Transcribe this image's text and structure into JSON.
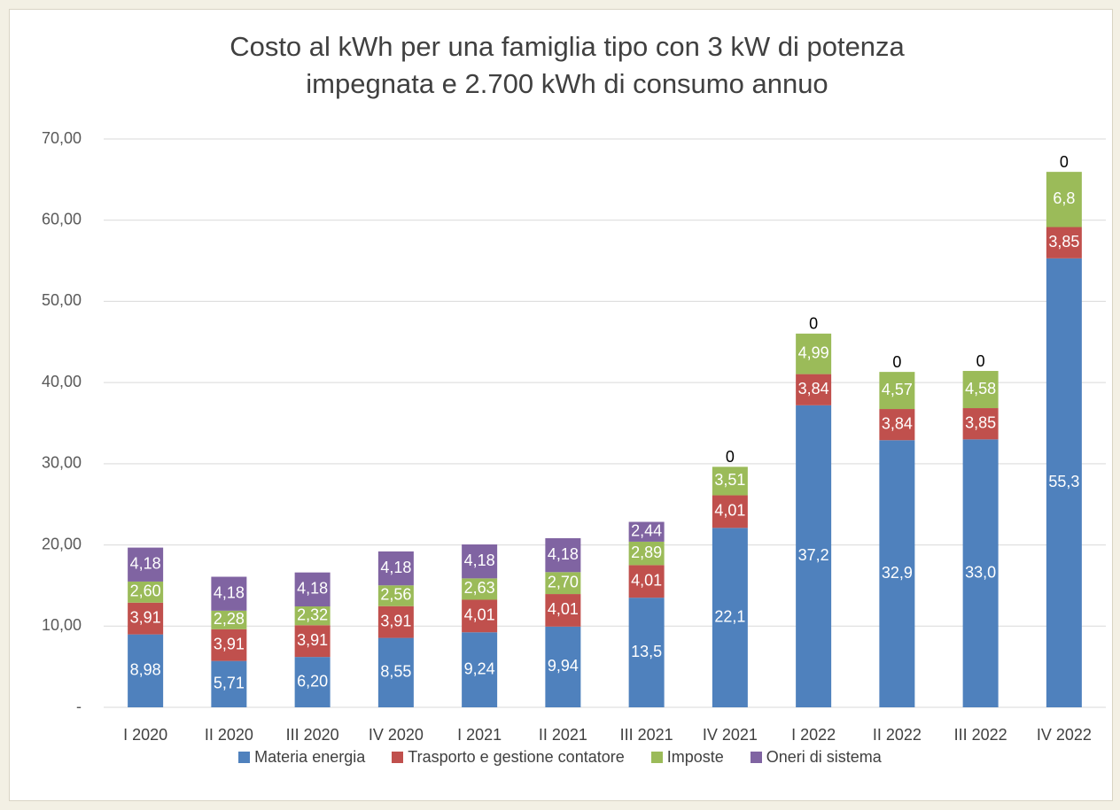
{
  "chart_data": {
    "type": "stacked_bar",
    "title": "Costo al kWh per una famiglia tipo con 3 kW di potenza impegnata e 2.700 kWh di consumo annuo",
    "categories": [
      "I 2020",
      "II 2020",
      "III 2020",
      "IV 2020",
      "I 2021",
      "II 2021",
      "III 2021",
      "IV 2021",
      "I 2022",
      "II 2022",
      "III 2022",
      "IV 2022"
    ],
    "series": [
      {
        "name": "Materia energia",
        "color": "#4f81bd",
        "values": [
          8.98,
          5.71,
          6.2,
          8.55,
          9.24,
          9.94,
          13.5,
          22.1,
          37.2,
          32.9,
          33.0,
          55.3
        ],
        "value_labels": [
          "8,98",
          "5,71",
          "6,20",
          "8,55",
          "9,24",
          "9,94",
          "13,5",
          "22,1",
          "37,2",
          "32,9",
          "33,0",
          "55,3"
        ]
      },
      {
        "name": "Trasporto e gestione contatore",
        "color": "#c0504d",
        "values": [
          3.91,
          3.91,
          3.91,
          3.91,
          4.01,
          4.01,
          4.01,
          4.01,
          3.84,
          3.84,
          3.85,
          3.85
        ],
        "value_labels": [
          "3,91",
          "3,91",
          "3,91",
          "3,91",
          "4,01",
          "4,01",
          "4,01",
          "4,01",
          "3,84",
          "3,84",
          "3,85",
          "3,85"
        ]
      },
      {
        "name": "Imposte",
        "color": "#9bbb59",
        "values": [
          2.6,
          2.28,
          2.32,
          2.56,
          2.63,
          2.7,
          2.89,
          3.51,
          4.99,
          4.57,
          4.58,
          6.8
        ],
        "value_labels": [
          "2,60",
          "2,28",
          "2,32",
          "2,56",
          "2,63",
          "2,70",
          "2,89",
          "3,51",
          "4,99",
          "4,57",
          "4,58",
          "6,8"
        ]
      },
      {
        "name": "Oneri di sistema",
        "color": "#8064a2",
        "values": [
          4.18,
          4.18,
          4.18,
          4.18,
          4.18,
          4.18,
          2.44,
          0,
          0,
          0,
          0,
          0
        ],
        "value_labels": [
          "4,18",
          "4,18",
          "4,18",
          "4,18",
          "4,18",
          "4,18",
          "2,44",
          "0",
          "0",
          "0",
          "0",
          "0"
        ]
      }
    ],
    "ylim": [
      0,
      70
    ],
    "yticks": [
      {
        "value": 0,
        "label": "-"
      },
      {
        "value": 10,
        "label": "10,00"
      },
      {
        "value": 20,
        "label": "20,00"
      },
      {
        "value": 30,
        "label": "30,00"
      },
      {
        "value": 40,
        "label": "40,00"
      },
      {
        "value": 50,
        "label": "50,00"
      },
      {
        "value": 60,
        "label": "60,00"
      },
      {
        "value": 70,
        "label": "70,00"
      }
    ],
    "grid": true,
    "legend": "bottom"
  }
}
